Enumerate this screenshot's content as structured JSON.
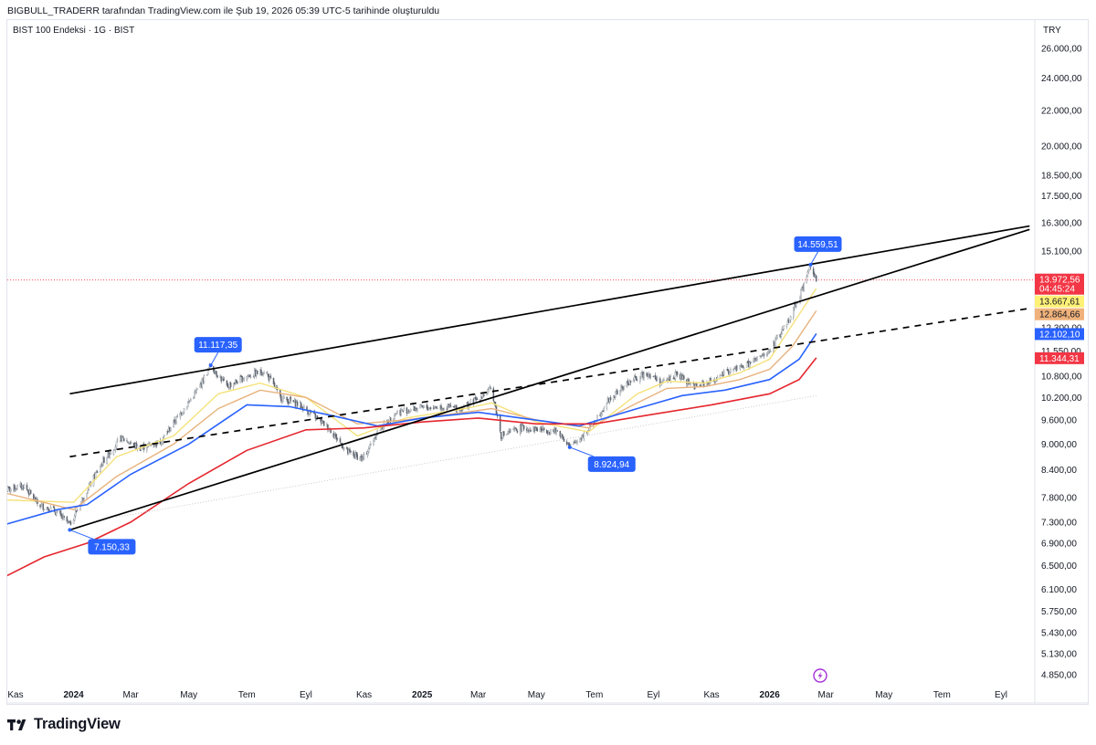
{
  "header": {
    "attribution": "BIGBULL_TRADERR tarafından TradingView.com ile Şub 19, 2026 05:39 UTC-5 tarihinde oluşturuldu",
    "symbol": "BIST 100 Endeksi · 1G · BIST",
    "currency": "TRY"
  },
  "footer": {
    "brand": "TradingView"
  },
  "colors": {
    "ma_yellow": "#f5e27a",
    "ma_orange": "#e8b27c",
    "ma_blue": "#2962ff",
    "ma_red": "#e5262e",
    "label_blue": "#2962ff",
    "label_red": "#f23645",
    "candle_up": "#7f8790",
    "candle_down": "#5d646e",
    "trendline": "#000000",
    "lightning_icon": "#a631d6"
  },
  "chart_data": {
    "type": "candlestick",
    "symbol": "BIST 100 Endeksi",
    "interval": "1G",
    "exchange": "BIST",
    "currency": "TRY",
    "y_scale": "log",
    "ylim": [
      4700,
      27000
    ],
    "x_axis_ticks": [
      "Kas",
      "2024",
      "Mar",
      "May",
      "Tem",
      "Eyl",
      "Kas",
      "2025",
      "Mar",
      "May",
      "Tem",
      "Eyl",
      "Kas",
      "2026",
      "Mar",
      "May",
      "Tem",
      "Eyl"
    ],
    "x_axis_tick_dates": [
      "2023-11-01",
      "2024-01-01",
      "2024-03-01",
      "2024-05-01",
      "2024-07-01",
      "2024-09-01",
      "2024-11-01",
      "2025-01-01",
      "2025-03-01",
      "2025-05-01",
      "2025-07-01",
      "2025-09-01",
      "2025-11-01",
      "2026-01-01",
      "2026-03-01",
      "2026-05-01",
      "2026-07-01",
      "2026-09-01"
    ],
    "y_axis_ticks": [
      "26.000,00",
      "24.000,00",
      "22.000,00",
      "20.000,00",
      "18.500,00",
      "17.500,00",
      "16.300,00",
      "15.100,00",
      "12.300,00",
      "11.550,00",
      "10.800,00",
      "10.200,00",
      "9.600,00",
      "9.000,00",
      "8.400,00",
      "7.800,00",
      "7.300,00",
      "6.900,00",
      "6.500,00",
      "6.100,00",
      "5.750,00",
      "5.430,00",
      "5.130,00",
      "4.850,00"
    ],
    "y_axis_tick_values": [
      26000,
      24000,
      22000,
      20000,
      18500,
      17500,
      16300,
      15100,
      12300,
      11550,
      10800,
      10200,
      9600,
      9000,
      8400,
      7800,
      7300,
      6900,
      6500,
      6100,
      5750,
      5430,
      5130,
      4850
    ],
    "close_path": [
      [
        "2023-10-20",
        7950
      ],
      [
        "2023-11-10",
        8050
      ],
      [
        "2023-11-25",
        7650
      ],
      [
        "2023-12-10",
        7550
      ],
      [
        "2023-12-28",
        7260
      ],
      [
        "2024-01-15",
        7950
      ],
      [
        "2024-02-01",
        8600
      ],
      [
        "2024-02-20",
        9150
      ],
      [
        "2024-03-10",
        8900
      ],
      [
        "2024-04-01",
        9050
      ],
      [
        "2024-04-20",
        9700
      ],
      [
        "2024-05-10",
        10400
      ],
      [
        "2024-05-24",
        11117
      ],
      [
        "2024-06-10",
        10500
      ],
      [
        "2024-07-01",
        10800
      ],
      [
        "2024-07-20",
        10950
      ],
      [
        "2024-08-05",
        10200
      ],
      [
        "2024-08-25",
        10000
      ],
      [
        "2024-09-10",
        9700
      ],
      [
        "2024-09-25",
        9400
      ],
      [
        "2024-10-15",
        8800
      ],
      [
        "2024-10-31",
        8650
      ],
      [
        "2024-11-15",
        9300
      ],
      [
        "2024-12-05",
        9800
      ],
      [
        "2024-12-25",
        9900
      ],
      [
        "2025-01-20",
        9950
      ],
      [
        "2025-02-10",
        9900
      ],
      [
        "2025-02-28",
        10150
      ],
      [
        "2025-03-15",
        10450
      ],
      [
        "2025-03-25",
        9200
      ],
      [
        "2025-04-15",
        9400
      ],
      [
        "2025-05-10",
        9350
      ],
      [
        "2025-05-25",
        9300
      ],
      [
        "2025-06-05",
        8925
      ],
      [
        "2025-06-25",
        9350
      ],
      [
        "2025-07-15",
        10100
      ],
      [
        "2025-08-05",
        10600
      ],
      [
        "2025-08-25",
        10900
      ],
      [
        "2025-09-10",
        10600
      ],
      [
        "2025-09-25",
        10850
      ],
      [
        "2025-10-15",
        10500
      ],
      [
        "2025-10-31",
        10650
      ],
      [
        "2025-11-20",
        10950
      ],
      [
        "2025-12-10",
        11150
      ],
      [
        "2025-12-31",
        11500
      ],
      [
        "2026-01-20",
        12500
      ],
      [
        "2026-02-05",
        13700
      ],
      [
        "2026-02-13",
        14560
      ],
      [
        "2026-02-19",
        13972
      ]
    ],
    "moving_averages": [
      {
        "color": "#f5e27a",
        "last_value": 13667.61,
        "path": [
          [
            "2023-10-20",
            7750
          ],
          [
            "2024-01-01",
            7700
          ],
          [
            "2024-02-15",
            8700
          ],
          [
            "2024-04-15",
            9200
          ],
          [
            "2024-06-01",
            10300
          ],
          [
            "2024-07-15",
            10600
          ],
          [
            "2024-09-01",
            10200
          ],
          [
            "2024-10-25",
            9200
          ],
          [
            "2024-12-15",
            9650
          ],
          [
            "2025-02-15",
            9900
          ],
          [
            "2025-03-15",
            10050
          ],
          [
            "2025-05-01",
            9550
          ],
          [
            "2025-06-25",
            9300
          ],
          [
            "2025-08-15",
            10300
          ],
          [
            "2025-09-15",
            10650
          ],
          [
            "2025-10-25",
            10600
          ],
          [
            "2025-12-01",
            10900
          ],
          [
            "2026-01-01",
            11300
          ],
          [
            "2026-01-25",
            12400
          ],
          [
            "2026-02-19",
            13668
          ]
        ]
      },
      {
        "color": "#e8b27c",
        "last_value": 12864.66,
        "path": [
          [
            "2023-10-20",
            7900
          ],
          [
            "2024-01-01",
            7550
          ],
          [
            "2024-02-15",
            8250
          ],
          [
            "2024-04-15",
            9000
          ],
          [
            "2024-06-01",
            9900
          ],
          [
            "2024-07-15",
            10400
          ],
          [
            "2024-09-01",
            10200
          ],
          [
            "2024-10-25",
            9500
          ],
          [
            "2024-12-15",
            9600
          ],
          [
            "2025-02-15",
            9800
          ],
          [
            "2025-03-15",
            9900
          ],
          [
            "2025-05-01",
            9600
          ],
          [
            "2025-06-25",
            9400
          ],
          [
            "2025-08-15",
            10050
          ],
          [
            "2025-09-15",
            10450
          ],
          [
            "2025-10-25",
            10500
          ],
          [
            "2025-12-01",
            10700
          ],
          [
            "2026-01-01",
            11000
          ],
          [
            "2026-01-25",
            11700
          ],
          [
            "2026-02-19",
            12865
          ]
        ]
      },
      {
        "color": "#2962ff",
        "last_value": 12102.1,
        "path": [
          [
            "2023-10-20",
            7250
          ],
          [
            "2023-12-15",
            7550
          ],
          [
            "2024-01-15",
            7650
          ],
          [
            "2024-03-01",
            8300
          ],
          [
            "2024-05-01",
            9000
          ],
          [
            "2024-07-01",
            10000
          ],
          [
            "2024-08-15",
            9950
          ],
          [
            "2024-10-01",
            9700
          ],
          [
            "2024-11-15",
            9450
          ],
          [
            "2025-01-01",
            9650
          ],
          [
            "2025-03-01",
            9800
          ],
          [
            "2025-04-15",
            9650
          ],
          [
            "2025-06-15",
            9450
          ],
          [
            "2025-08-15",
            9900
          ],
          [
            "2025-10-01",
            10250
          ],
          [
            "2025-11-15",
            10400
          ],
          [
            "2026-01-01",
            10700
          ],
          [
            "2026-02-01",
            11300
          ],
          [
            "2026-02-19",
            12102
          ]
        ]
      },
      {
        "color": "#e5262e",
        "last_value": 11344.31,
        "path": [
          [
            "2023-10-20",
            6300
          ],
          [
            "2023-12-01",
            6650
          ],
          [
            "2024-01-15",
            6900
          ],
          [
            "2024-03-01",
            7300
          ],
          [
            "2024-05-01",
            8100
          ],
          [
            "2024-07-01",
            8850
          ],
          [
            "2024-09-01",
            9350
          ],
          [
            "2024-11-01",
            9400
          ],
          [
            "2025-01-01",
            9550
          ],
          [
            "2025-03-01",
            9650
          ],
          [
            "2025-05-01",
            9500
          ],
          [
            "2025-07-01",
            9500
          ],
          [
            "2025-09-01",
            9750
          ],
          [
            "2025-11-01",
            10000
          ],
          [
            "2026-01-01",
            10300
          ],
          [
            "2026-02-01",
            10700
          ],
          [
            "2026-02-19",
            11344
          ]
        ]
      }
    ],
    "trendlines": [
      {
        "style": "solid",
        "from": [
          "2023-12-28",
          7150
        ],
        "to": [
          "2026-10-01",
          16000
        ]
      },
      {
        "style": "solid",
        "from": [
          "2023-12-28",
          10300
        ],
        "to": [
          "2026-10-01",
          16150
        ]
      },
      {
        "style": "dashed",
        "from": [
          "2023-12-28",
          8700
        ],
        "to": [
          "2026-10-01",
          12950
        ]
      },
      {
        "style": "dotted",
        "from": [
          "2024-02-15",
          7400
        ],
        "to": [
          "2026-02-19",
          10250
        ]
      }
    ],
    "annotations": [
      {
        "text": "7.150,33",
        "date": "2023-12-28",
        "value": 7150.33,
        "placement": "below-right"
      },
      {
        "text": "11.117,35",
        "date": "2024-05-24",
        "value": 11117.35,
        "placement": "above"
      },
      {
        "text": "8.924,94",
        "date": "2025-06-05",
        "value": 8924.94,
        "placement": "below-right"
      },
      {
        "text": "14.559,51",
        "date": "2026-02-13",
        "value": 14559.51,
        "placement": "above"
      }
    ],
    "last_price": 13972.56,
    "last_price_label": "13.972,56",
    "countdown": "04:45:24",
    "price_labels": [
      {
        "text": "13.667,61",
        "value": 13667.61,
        "bg": "#fff176",
        "fg": "#131722"
      },
      {
        "text": "12.864,66",
        "value": 12864.66,
        "bg": "#f0b27a",
        "fg": "#131722"
      },
      {
        "text": "12.102,10",
        "value": 12102.1,
        "bg": "#2962ff",
        "fg": "#ffffff"
      },
      {
        "text": "11.344,31",
        "value": 11344.31,
        "bg": "#f23645",
        "fg": "#ffffff"
      }
    ]
  }
}
